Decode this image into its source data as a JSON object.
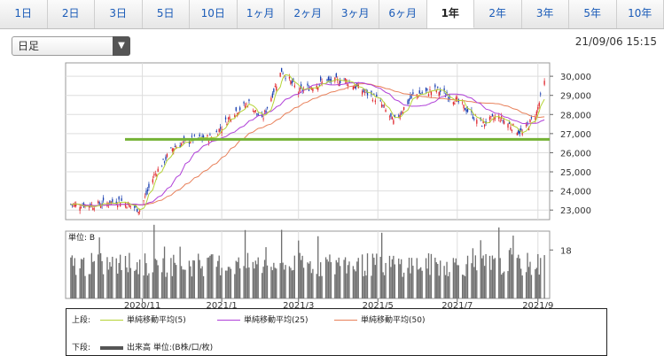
{
  "tabs": [
    {
      "label": "1日",
      "active": false
    },
    {
      "label": "2日",
      "active": false
    },
    {
      "label": "3日",
      "active": false
    },
    {
      "label": "5日",
      "active": false
    },
    {
      "label": "10日",
      "active": false
    },
    {
      "label": "1ヶ月",
      "active": false
    },
    {
      "label": "2ヶ月",
      "active": false
    },
    {
      "label": "3ヶ月",
      "active": false
    },
    {
      "label": "6ヶ月",
      "active": false
    },
    {
      "label": "1年",
      "active": true
    },
    {
      "label": "2年",
      "active": false
    },
    {
      "label": "3年",
      "active": false
    },
    {
      "label": "5年",
      "active": false
    },
    {
      "label": "10年",
      "active": false
    }
  ],
  "select": {
    "value": "日足",
    "arrow_icon": "triangle-down-icon"
  },
  "timestamp": "21/09/06 15:15",
  "colors": {
    "up": "#e0282e",
    "down": "#1a3fb0",
    "sma5": "#b5d335",
    "sma25": "#b040d8",
    "sma50": "#e8805a",
    "support": "#74b235",
    "volume": "#6f6f6f",
    "grid": "#dddddd"
  },
  "legend": {
    "upper_label": "上段:",
    "upper_items": [
      {
        "label": "単純移動平均(5)",
        "color": "#b5d335"
      },
      {
        "label": "単純移動平均(25)",
        "color": "#b040d8"
      },
      {
        "label": "単純移動平均(50)",
        "color": "#e8805a"
      }
    ],
    "lower_label": "下段:",
    "lower_item": {
      "label": "出来高 単位:(B株/口/枚)",
      "color": "#555555"
    }
  },
  "chart_data": {
    "type": "candlestick",
    "x_tick_labels": [
      "2020/11",
      "2021/1",
      "2021/3",
      "2021/5",
      "2021/7",
      "2021/9"
    ],
    "y_tick_labels": [
      "23,000",
      "24,000",
      "25,000",
      "26,000",
      "27,000",
      "28,000",
      "29,000",
      "30,000"
    ],
    "ylim": [
      22500,
      30700
    ],
    "support_line": 26700,
    "volume_unit_label": "単位: B",
    "volume_tick_label": "18",
    "volume_tick_value": 18,
    "volume_ylim": [
      0,
      25
    ],
    "price_path": [
      {
        "date": "2020-09-07",
        "close": 23300
      },
      {
        "date": "2020-09-25",
        "close": 23250
      },
      {
        "date": "2020-10-15",
        "close": 23500
      },
      {
        "date": "2020-10-30",
        "close": 23000
      },
      {
        "date": "2020-11-10",
        "close": 24800
      },
      {
        "date": "2020-11-25",
        "close": 26300
      },
      {
        "date": "2020-12-10",
        "close": 26700
      },
      {
        "date": "2020-12-25",
        "close": 26800
      },
      {
        "date": "2021-01-10",
        "close": 28100
      },
      {
        "date": "2021-01-22",
        "close": 28600
      },
      {
        "date": "2021-02-01",
        "close": 27700
      },
      {
        "date": "2021-02-16",
        "close": 30300
      },
      {
        "date": "2021-03-01",
        "close": 29200
      },
      {
        "date": "2021-03-20",
        "close": 29700
      },
      {
        "date": "2021-04-06",
        "close": 29800
      },
      {
        "date": "2021-04-20",
        "close": 29200
      },
      {
        "date": "2021-05-01",
        "close": 28800
      },
      {
        "date": "2021-05-13",
        "close": 27600
      },
      {
        "date": "2021-05-28",
        "close": 29000
      },
      {
        "date": "2021-06-15",
        "close": 29300
      },
      {
        "date": "2021-07-01",
        "close": 28700
      },
      {
        "date": "2021-07-20",
        "close": 27500
      },
      {
        "date": "2021-08-01",
        "close": 27900
      },
      {
        "date": "2021-08-20",
        "close": 27000
      },
      {
        "date": "2021-08-31",
        "close": 28100
      },
      {
        "date": "2021-09-06",
        "close": 29650
      }
    ]
  }
}
